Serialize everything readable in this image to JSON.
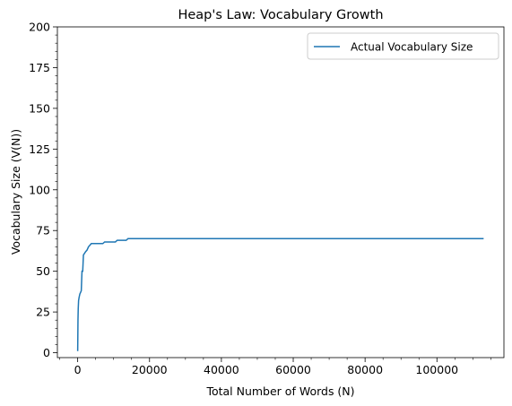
{
  "chart_data": {
    "type": "line",
    "title": "Heap's Law: Vocabulary Growth",
    "xlabel": "Total Number of Words (N)",
    "ylabel": "Vocabulary Size (V(N))",
    "xlim": [
      -5650,
      118650
    ],
    "ylim": [
      -3,
      200
    ],
    "x_ticks": [
      0,
      20000,
      40000,
      60000,
      80000,
      100000
    ],
    "y_ticks": [
      0,
      25,
      50,
      75,
      100,
      125,
      150,
      175,
      200
    ],
    "grid": false,
    "legend": "top-right",
    "series": [
      {
        "name": "Actual Vocabulary Size",
        "color": "#1f77b4",
        "points": [
          [
            0,
            1
          ],
          [
            40,
            10
          ],
          [
            80,
            20
          ],
          [
            150,
            27
          ],
          [
            250,
            32
          ],
          [
            400,
            34
          ],
          [
            600,
            36
          ],
          [
            800,
            37
          ],
          [
            1000,
            38
          ],
          [
            1100,
            44
          ],
          [
            1200,
            50
          ],
          [
            1400,
            50
          ],
          [
            1500,
            55
          ],
          [
            1600,
            60
          ],
          [
            1900,
            61
          ],
          [
            2200,
            62
          ],
          [
            2600,
            63
          ],
          [
            3000,
            65
          ],
          [
            3400,
            66
          ],
          [
            3800,
            67
          ],
          [
            7000,
            67
          ],
          [
            7500,
            68
          ],
          [
            10500,
            68
          ],
          [
            11000,
            69
          ],
          [
            13500,
            69
          ],
          [
            14000,
            70
          ],
          [
            113000,
            70
          ]
        ]
      }
    ]
  }
}
